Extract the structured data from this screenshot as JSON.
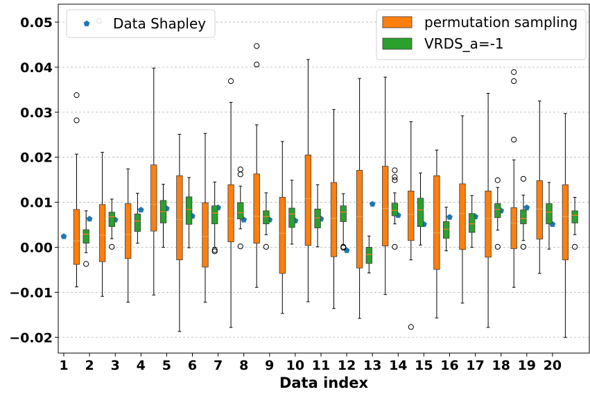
{
  "chart_data": {
    "type": "box",
    "xlabel": "Data index",
    "ylabel": "",
    "ylim": [
      -0.0235,
      0.054
    ],
    "y_ticks": [
      -0.02,
      -0.01,
      0.0,
      0.01,
      0.02,
      0.03,
      0.04,
      0.05
    ],
    "y_tick_labels": [
      "−0.02",
      "−0.01",
      "0.00",
      "0.01",
      "0.02",
      "0.03",
      "0.04",
      "0.05"
    ],
    "categories": [
      "1",
      "2",
      "3",
      "4",
      "5",
      "6",
      "7",
      "8",
      "9",
      "10",
      "11",
      "12",
      "13",
      "14",
      "15",
      "16",
      "17",
      "18",
      "19",
      "20"
    ],
    "grid": "horizontal dashed",
    "legends": [
      {
        "position": "top-left",
        "entries": [
          {
            "label": "Data Shapley",
            "marker": "pentagon",
            "color": "#1f77b4"
          }
        ]
      },
      {
        "position": "top-right",
        "entries": [
          {
            "label": "permutation sampling",
            "color": "#ff7f0e"
          },
          {
            "label": "VRDS_a=-1",
            "color": "#2ca02c"
          }
        ]
      }
    ],
    "data_shapley": [
      0.0024,
      0.0063,
      0.0061,
      0.0083,
      0.0086,
      0.0069,
      0.0088,
      0.0061,
      0.0061,
      0.0059,
      0.0063,
      -0.0007,
      0.0096,
      0.0071,
      0.0051,
      0.0067,
      0.0068,
      0.0081,
      0.0088,
      0.0051
    ],
    "series": [
      {
        "name": "permutation sampling",
        "color": "#ff7f0e",
        "boxes": [
          {
            "whislo": -0.0088,
            "q1": -0.0038,
            "med": 0.0014,
            "q3": 0.0084,
            "whishi": 0.0207,
            "fliers": [
              0.0338,
              0.0282
            ]
          },
          {
            "whislo": -0.0109,
            "q1": -0.0032,
            "med": 0.0027,
            "q3": 0.0095,
            "whishi": 0.0211,
            "fliers": []
          },
          {
            "whislo": -0.0122,
            "q1": -0.0025,
            "med": 0.0028,
            "q3": 0.0097,
            "whishi": 0.0174,
            "fliers": []
          },
          {
            "whislo": -0.0106,
            "q1": 0.0036,
            "med": 0.0095,
            "q3": 0.0183,
            "whishi": 0.0398,
            "fliers": []
          },
          {
            "whislo": -0.0187,
            "q1": -0.0028,
            "med": 0.0062,
            "q3": 0.0159,
            "whishi": 0.0251,
            "fliers": []
          },
          {
            "whislo": -0.0122,
            "q1": -0.0044,
            "med": 0.0024,
            "q3": 0.0099,
            "whishi": 0.0253,
            "fliers": []
          },
          {
            "whislo": -0.0178,
            "q1": 0.0012,
            "med": 0.0064,
            "q3": 0.0139,
            "whishi": 0.0322,
            "fliers": [
              0.0369
            ]
          },
          {
            "whislo": -0.0089,
            "q1": 0.0009,
            "med": 0.0069,
            "q3": 0.0163,
            "whishi": 0.0272,
            "fliers": [
              0.0447,
              0.0406
            ]
          },
          {
            "whislo": -0.0147,
            "q1": -0.0058,
            "med": 0.0031,
            "q3": 0.0111,
            "whishi": 0.0235,
            "fliers": []
          },
          {
            "whislo": -0.0121,
            "q1": 0.0004,
            "med": 0.0108,
            "q3": 0.0205,
            "whishi": 0.0417,
            "fliers": []
          },
          {
            "whislo": -0.0136,
            "q1": -0.0021,
            "med": 0.0064,
            "q3": 0.0144,
            "whishi": 0.0306,
            "fliers": []
          },
          {
            "whislo": -0.0158,
            "q1": -0.0046,
            "med": 0.0068,
            "q3": 0.0171,
            "whishi": 0.0375,
            "fliers": []
          },
          {
            "whislo": -0.0105,
            "q1": 0.0003,
            "med": 0.0086,
            "q3": 0.018,
            "whishi": 0.0378,
            "fliers": []
          },
          {
            "whislo": -0.0028,
            "q1": 0.0015,
            "med": 0.0073,
            "q3": 0.0125,
            "whishi": 0.0279,
            "fliers": [
              -0.0177
            ]
          },
          {
            "whislo": -0.0157,
            "q1": -0.0049,
            "med": 0.0032,
            "q3": 0.0159,
            "whishi": 0.0216,
            "fliers": []
          },
          {
            "whislo": -0.0124,
            "q1": -0.0005,
            "med": 0.0075,
            "q3": 0.0141,
            "whishi": 0.0292,
            "fliers": []
          },
          {
            "whislo": -0.0178,
            "q1": -0.0022,
            "med": 0.0064,
            "q3": 0.0125,
            "whishi": 0.0342,
            "fliers": []
          },
          {
            "whislo": -0.0089,
            "q1": -0.0003,
            "med": 0.0054,
            "q3": 0.0088,
            "whishi": 0.0194,
            "fliers": [
              0.0389,
              0.0369,
              0.0239
            ]
          },
          {
            "whislo": -0.0058,
            "q1": 0.0018,
            "med": 0.0085,
            "q3": 0.0148,
            "whishi": 0.0325,
            "fliers": []
          },
          {
            "whislo": -0.02,
            "q1": -0.0028,
            "med": 0.0068,
            "q3": 0.0139,
            "whishi": 0.0297,
            "fliers": []
          }
        ]
      },
      {
        "name": "VRDS_a=-1",
        "color": "#2ca02c",
        "boxes": [
          {
            "whislo": -0.0012,
            "q1": 0.0009,
            "med": 0.0029,
            "q3": 0.0039,
            "whishi": 0.0081,
            "fliers": [
              -0.0037
            ]
          },
          {
            "whislo": 0.0019,
            "q1": 0.0046,
            "med": 0.0068,
            "q3": 0.0078,
            "whishi": 0.0107,
            "fliers": [
              0.0001
            ]
          },
          {
            "whislo": 0.0009,
            "q1": 0.0035,
            "med": 0.0058,
            "q3": 0.0074,
            "whishi": 0.012,
            "fliers": []
          },
          {
            "whislo": 0.0,
            "q1": 0.0054,
            "med": 0.0079,
            "q3": 0.0104,
            "whishi": 0.014,
            "fliers": []
          },
          {
            "whislo": -0.0001,
            "q1": 0.0051,
            "med": 0.0084,
            "q3": 0.0112,
            "whishi": 0.0155,
            "fliers": []
          },
          {
            "whislo": 0.0,
            "q1": 0.0052,
            "med": 0.0076,
            "q3": 0.0092,
            "whishi": 0.0145,
            "fliers": [
              -0.0006,
              -0.0009
            ]
          },
          {
            "whislo": 0.0041,
            "q1": 0.0063,
            "med": 0.0077,
            "q3": 0.0099,
            "whishi": 0.0136,
            "fliers": [
              0.0173,
              0.0162,
              0.0002
            ]
          },
          {
            "whislo": 0.0028,
            "q1": 0.0052,
            "med": 0.0068,
            "q3": 0.0081,
            "whishi": 0.0121,
            "fliers": [
              0.0001
            ]
          },
          {
            "whislo": 0.0007,
            "q1": 0.0044,
            "med": 0.0074,
            "q3": 0.0087,
            "whishi": 0.0149,
            "fliers": []
          },
          {
            "whislo": 0.0001,
            "q1": 0.0043,
            "med": 0.0065,
            "q3": 0.0085,
            "whishi": 0.0139,
            "fliers": []
          },
          {
            "whislo": 0.0006,
            "q1": 0.0057,
            "med": 0.0078,
            "q3": 0.0092,
            "whishi": 0.0119,
            "fliers": [
              0.0001,
              -0.0001
            ]
          },
          {
            "whislo": -0.0057,
            "q1": -0.0036,
            "med": -0.0016,
            "q3": 0.0,
            "whishi": 0.0025,
            "fliers": []
          },
          {
            "whislo": 0.0052,
            "q1": 0.007,
            "med": 0.0082,
            "q3": 0.0098,
            "whishi": 0.0121,
            "fliers": [
              0.0171,
              0.0156,
              0.0149,
              0.0001
            ]
          },
          {
            "whislo": 0.0005,
            "q1": 0.0046,
            "med": 0.0083,
            "q3": 0.0109,
            "whishi": 0.0165,
            "fliers": []
          },
          {
            "whislo": -0.0008,
            "q1": 0.002,
            "med": 0.004,
            "q3": 0.0057,
            "whishi": 0.0089,
            "fliers": []
          },
          {
            "whislo": 0.0,
            "q1": 0.0033,
            "med": 0.0052,
            "q3": 0.0075,
            "whishi": 0.0115,
            "fliers": []
          },
          {
            "whislo": 0.0038,
            "q1": 0.0066,
            "med": 0.0084,
            "q3": 0.0097,
            "whishi": 0.0133,
            "fliers": [
              0.0149,
              0.0001
            ]
          },
          {
            "whislo": 0.0015,
            "q1": 0.0052,
            "med": 0.0064,
            "q3": 0.0083,
            "whishi": 0.0116,
            "fliers": [
              0.0152,
              0.0001
            ]
          },
          {
            "whislo": -0.0004,
            "q1": 0.0052,
            "med": 0.0078,
            "q3": 0.0097,
            "whishi": 0.0144,
            "fliers": []
          },
          {
            "whislo": 0.0028,
            "q1": 0.0054,
            "med": 0.0071,
            "q3": 0.0081,
            "whishi": 0.0111,
            "fliers": [
              0.0001
            ]
          }
        ]
      }
    ]
  }
}
